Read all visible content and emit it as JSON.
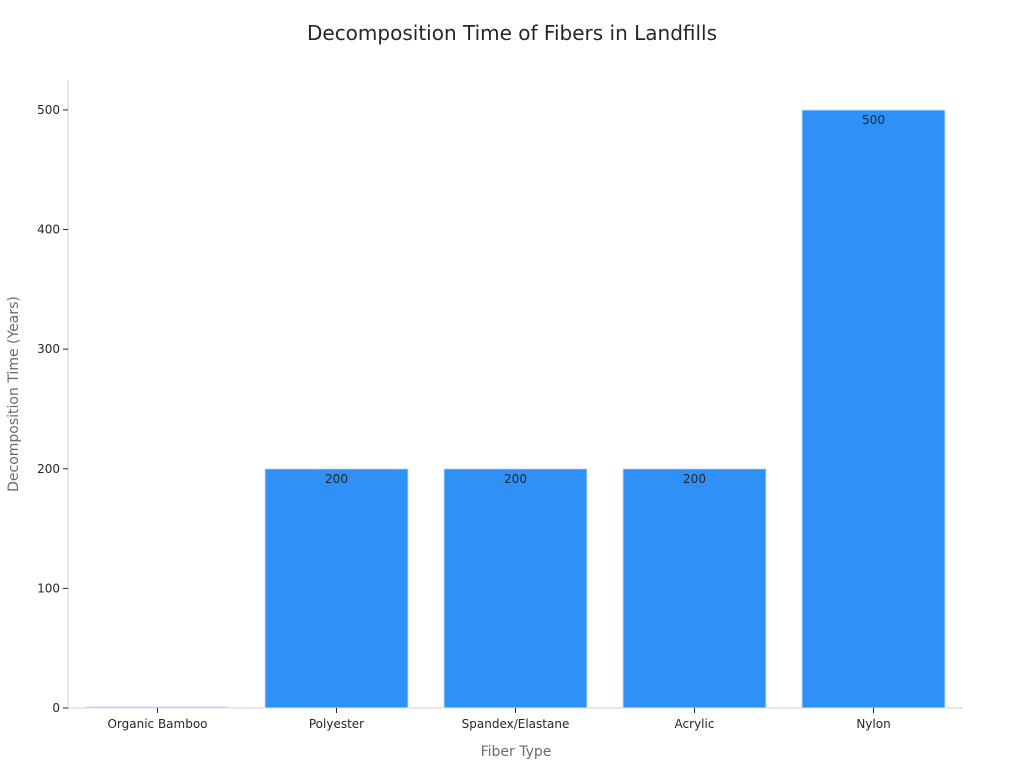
{
  "chart_data": {
    "type": "bar",
    "title": "Decomposition Time of Fibers in Landfills",
    "xlabel": "Fiber Type",
    "ylabel": "Decomposition Time (Years)",
    "categories": [
      "Organic Bamboo",
      "Polyester",
      "Spandex/Elastane",
      "Acrylic",
      "Nylon"
    ],
    "values": [
      1,
      200,
      200,
      200,
      500
    ],
    "data_labels": [
      "",
      "200",
      "200",
      "200",
      "500"
    ],
    "ylim": [
      0,
      525
    ],
    "yticks": [
      0,
      100,
      200,
      300,
      400,
      500
    ],
    "grid": false,
    "legend": "none",
    "colors": {
      "bar_fill": "#2f91f7",
      "bar_edge": "#d7e6f7",
      "axis": "#cfcfcf",
      "text": "#262626",
      "axis_label": "#6b6b6b"
    }
  }
}
